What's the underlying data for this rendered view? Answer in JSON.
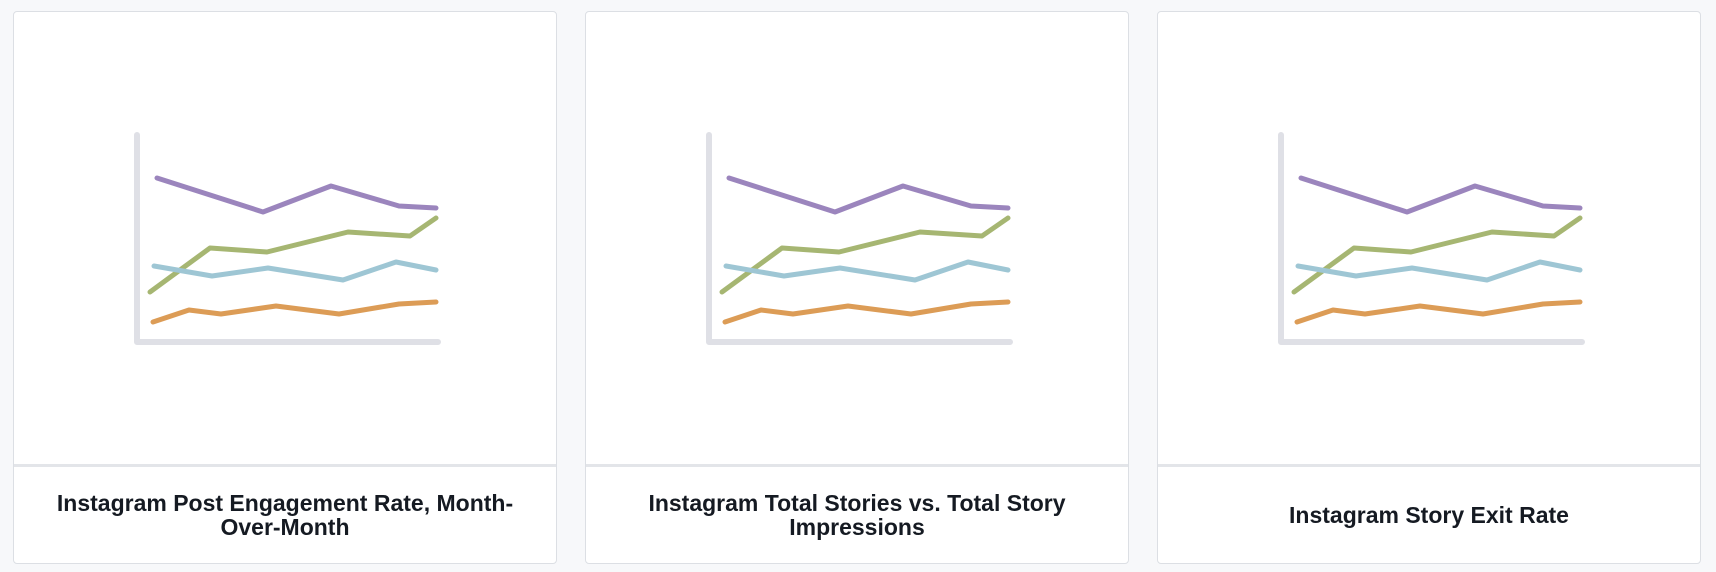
{
  "cards": [
    {
      "title": "Instagram Post Engagement Rate, Month-Over-Month",
      "thumbnail_icon": "line-chart-thumbnail"
    },
    {
      "title": "Instagram Total Stories vs. Total Story Impressions",
      "thumbnail_icon": "line-chart-thumbnail"
    },
    {
      "title": "Instagram Story Exit Rate",
      "thumbnail_icon": "line-chart-thumbnail"
    }
  ],
  "thumbnail": {
    "axis_color": "#dfe0e6",
    "series": [
      {
        "color": "#9b85bd",
        "values": [
          0.82,
          0.65,
          0.78,
          0.68,
          0.67
        ]
      },
      {
        "color": "#a6b672",
        "values": [
          0.25,
          0.47,
          0.45,
          0.55,
          0.53,
          0.62
        ]
      },
      {
        "color": "#9ec6d4",
        "values": [
          0.38,
          0.33,
          0.37,
          0.31,
          0.4,
          0.36
        ]
      },
      {
        "color": "#dc9c56",
        "values": [
          0.1,
          0.16,
          0.14,
          0.18,
          0.14,
          0.19,
          0.2
        ]
      }
    ]
  }
}
